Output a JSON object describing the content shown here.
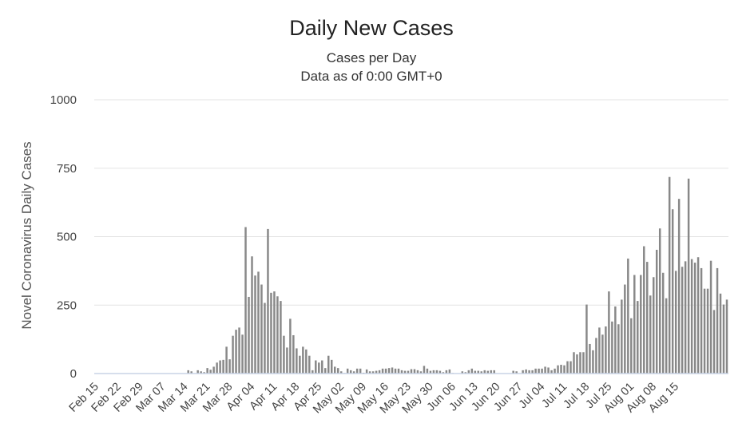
{
  "chart_data": {
    "type": "bar",
    "title": "Daily New Cases",
    "subtitle": [
      "Cases per Day",
      "Data as of 0:00 GMT+0"
    ],
    "xlabel": "",
    "ylabel": "Novel Coronavirus Daily Cases",
    "ylim": [
      0,
      1000
    ],
    "yticks": [
      "0",
      "250",
      "500",
      "750",
      "1000"
    ],
    "grid": true,
    "bar_color": "#888888",
    "x_tick_labels": [
      "Feb 15",
      "Feb 22",
      "Feb 29",
      "Mar 07",
      "Mar 14",
      "Mar 21",
      "Mar 28",
      "Apr 04",
      "Apr 11",
      "Apr 18",
      "Apr 25",
      "May 02",
      "May 09",
      "May 16",
      "May 23",
      "May 30",
      "Jun 06",
      "Jun 13",
      "Jun 20",
      "Jun 27",
      "Jul 04",
      "Jul 11",
      "Jul 18",
      "Jul 25",
      "Aug 01",
      "Aug 08",
      "Aug 15"
    ],
    "values": [
      0,
      0,
      0,
      0,
      0,
      0,
      0,
      0,
      0,
      0,
      0,
      0,
      0,
      0,
      0,
      0,
      0,
      0,
      0,
      0,
      0,
      0,
      0,
      0,
      0,
      0,
      0,
      0,
      0,
      12,
      8,
      0,
      12,
      8,
      5,
      20,
      14,
      25,
      40,
      48,
      50,
      98,
      52,
      138,
      160,
      168,
      142,
      535,
      280,
      428,
      358,
      372,
      325,
      258,
      528,
      295,
      300,
      282,
      265,
      138,
      95,
      200,
      140,
      92,
      65,
      98,
      88,
      65,
      12,
      48,
      40,
      48,
      20,
      65,
      50,
      25,
      20,
      8,
      2,
      18,
      12,
      8,
      18,
      18,
      3,
      15,
      8,
      8,
      10,
      12,
      18,
      18,
      20,
      22,
      18,
      18,
      12,
      10,
      10,
      16,
      16,
      12,
      8,
      28,
      18,
      10,
      12,
      12,
      10,
      5,
      12,
      15,
      2,
      0,
      0,
      8,
      5,
      12,
      18,
      10,
      10,
      8,
      12,
      10,
      12,
      12,
      0,
      0,
      0,
      0,
      0,
      10,
      8,
      0,
      12,
      15,
      12,
      12,
      18,
      18,
      18,
      25,
      22,
      12,
      18,
      30,
      32,
      30,
      45,
      45,
      78,
      70,
      78,
      78,
      252,
      108,
      85,
      130,
      168,
      142,
      172,
      300,
      190,
      245,
      180,
      270,
      325,
      420,
      202,
      360,
      265,
      360,
      465,
      408,
      285,
      352,
      452,
      530,
      368,
      275,
      718,
      600,
      375,
      638,
      390,
      410,
      712,
      418,
      405,
      425,
      385,
      310,
      310,
      412,
      232,
      385,
      292,
      252,
      270
    ]
  }
}
